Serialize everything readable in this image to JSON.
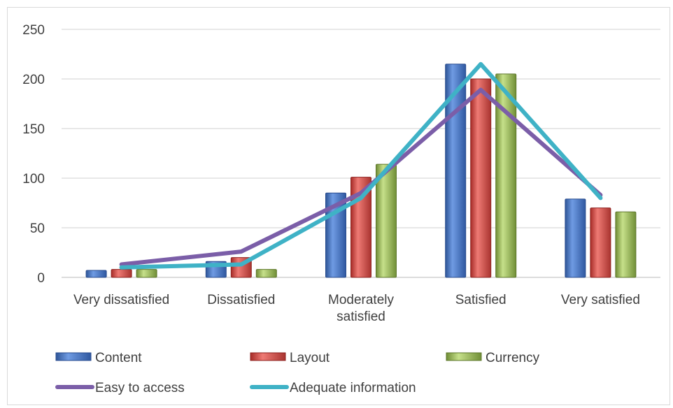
{
  "chart_data": {
    "type": "bar",
    "categories": [
      [
        "Very dissatisfied"
      ],
      [
        "Dissatisfied"
      ],
      [
        "Moderately",
        "satisfied"
      ],
      [
        "Satisfied"
      ],
      [
        "Very satisfied"
      ]
    ],
    "series": [
      {
        "name": "Content",
        "kind": "bar",
        "color": "#4472c4",
        "values": [
          7,
          16,
          85,
          215,
          79
        ]
      },
      {
        "name": "Layout",
        "kind": "bar",
        "color": "#d9413d",
        "values": [
          8,
          20,
          101,
          200,
          70
        ]
      },
      {
        "name": "Currency",
        "kind": "bar",
        "color": "#9bbb59",
        "values": [
          8,
          8,
          114,
          205,
          66
        ]
      },
      {
        "name": "Easy to access",
        "kind": "line",
        "color": "#7b5ea8",
        "values": [
          13,
          26,
          85,
          189,
          83
        ]
      },
      {
        "name": "Adequate information",
        "kind": "line",
        "color": "#3fb2c6",
        "values": [
          10,
          13,
          80,
          215,
          80
        ]
      }
    ],
    "y_ticks": [
      0,
      50,
      100,
      150,
      200,
      250
    ],
    "ylim": [
      0,
      250
    ],
    "grid": true,
    "legend_position": "bottom",
    "title": "",
    "xlabel": "",
    "ylabel": ""
  }
}
